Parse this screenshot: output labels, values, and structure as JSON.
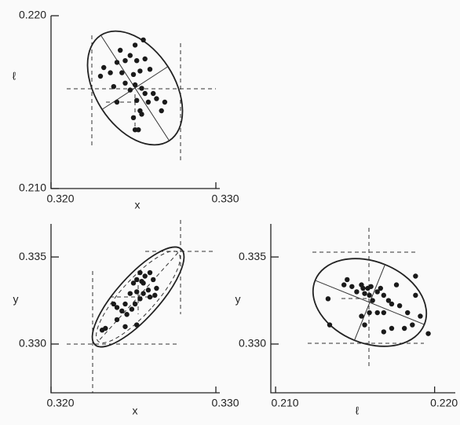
{
  "chart_data": [
    {
      "type": "scatter",
      "x_label": "x",
      "y_label": "ℓ",
      "color": "#1a1a1a",
      "xlim": [
        0.32,
        0.33
      ],
      "ylim": [
        0.21,
        0.22
      ],
      "xticks": [
        {
          "value": 0.32,
          "label": "0.320"
        },
        {
          "value": 0.33,
          "label": "0.330"
        }
      ],
      "yticks": [
        {
          "value": 0.22,
          "label": "0.220"
        },
        {
          "value": 0.21,
          "label": "0.210"
        }
      ],
      "x": [
        0.3242,
        0.3248,
        0.3251,
        0.3256,
        0.3245,
        0.3252,
        0.3257,
        0.324,
        0.3232,
        0.323,
        0.3236,
        0.3243,
        0.325,
        0.3254,
        0.326,
        0.3238,
        0.3245,
        0.3251,
        0.3255,
        0.3257,
        0.3262,
        0.3264,
        0.3269,
        0.3259,
        0.3252,
        0.3254,
        0.325,
        0.3255,
        0.3251,
        0.3253,
        0.3248,
        0.324,
        0.3267
      ],
      "values": [
        0.218,
        0.2177,
        0.2183,
        0.2186,
        0.2174,
        0.2174,
        0.2175,
        0.2173,
        0.217,
        0.2165,
        0.2167,
        0.2167,
        0.2166,
        0.2168,
        0.2169,
        0.2159,
        0.2161,
        0.216,
        0.2158,
        0.2155,
        0.2155,
        0.2152,
        0.215,
        0.215,
        0.2151,
        0.2145,
        0.2141,
        0.2143,
        0.2134,
        0.2134,
        0.2157,
        0.215,
        0.2145
      ]
    },
    {
      "type": "scatter",
      "x_label": "x",
      "y_label": "y",
      "color": "#1a1a1a",
      "xlim": [
        0.32,
        0.33
      ],
      "ylim": [
        0.3272,
        0.3369
      ],
      "xticks": [
        {
          "value": 0.32,
          "label": "0.320"
        },
        {
          "value": 0.33,
          "label": "0.330"
        }
      ],
      "yticks": [
        0.335,
        {
          "value": 0.33,
          "label": "0.330"
        }
      ],
      "x": [
        0.3231,
        0.3233,
        0.324,
        0.324,
        0.3243,
        0.3245,
        0.3248,
        0.325,
        0.3252,
        0.3255,
        0.3257,
        0.326,
        0.3262,
        0.3252,
        0.3256,
        0.3259,
        0.3254,
        0.3249,
        0.3252,
        0.3245,
        0.3246,
        0.3238,
        0.3264,
        0.3263,
        0.326,
        0.3251,
        0.3256,
        0.3254
      ],
      "values": [
        0.3308,
        0.3309,
        0.3314,
        0.3321,
        0.3319,
        0.3323,
        0.3329,
        0.3335,
        0.3337,
        0.3336,
        0.3339,
        0.3341,
        0.3337,
        0.333,
        0.3329,
        0.3331,
        0.3326,
        0.332,
        0.3311,
        0.331,
        0.3317,
        0.3323,
        0.3332,
        0.3328,
        0.3327,
        0.3323,
        0.3335,
        0.3341
      ]
    },
    {
      "type": "scatter",
      "x_label": "ℓ",
      "y_label": "y",
      "color": "#1a1a1a",
      "xlim": [
        0.2097,
        0.2213
      ],
      "ylim": [
        0.3272,
        0.3369
      ],
      "xticks": [
        {
          "value": 0.21,
          "label": "0.210"
        },
        {
          "value": 0.22,
          "label": "0.220"
        }
      ],
      "yticks": [
        0.335,
        {
          "value": 0.33,
          "label": "0.330"
        }
      ],
      "x": [
        0.2133,
        0.2134,
        0.2143,
        0.2145,
        0.2148,
        0.2151,
        0.2154,
        0.2155,
        0.2156,
        0.2158,
        0.2159,
        0.216,
        0.2161,
        0.2164,
        0.2166,
        0.2168,
        0.2171,
        0.2173,
        0.2176,
        0.2178,
        0.2183,
        0.2186,
        0.2188,
        0.2191,
        0.2181,
        0.2173,
        0.2168,
        0.2164,
        0.2159,
        0.2154,
        0.2156,
        0.2196,
        0.2168,
        0.2188
      ],
      "values": [
        0.3326,
        0.3311,
        0.3334,
        0.3337,
        0.3333,
        0.333,
        0.3334,
        0.3332,
        0.3329,
        0.3332,
        0.3328,
        0.3333,
        0.3325,
        0.333,
        0.3332,
        0.3328,
        0.3325,
        0.3323,
        0.3334,
        0.3322,
        0.3318,
        0.3311,
        0.3339,
        0.3316,
        0.3309,
        0.3309,
        0.3307,
        0.3318,
        0.3318,
        0.3316,
        0.3311,
        0.3306,
        0.3318,
        0.3328
      ]
    }
  ]
}
